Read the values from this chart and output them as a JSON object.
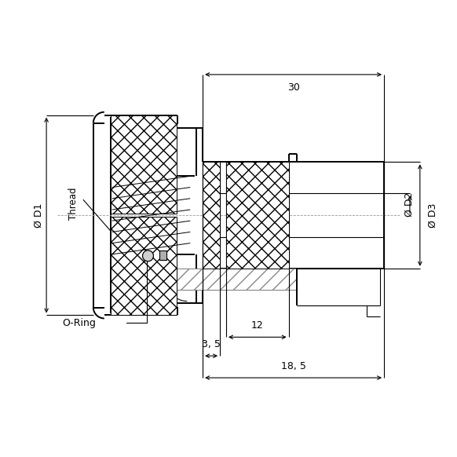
{
  "bg_color": "#ffffff",
  "line_color": "#000000",
  "annotations": {
    "dim_185": "18, 5",
    "dim_35": "3, 5",
    "dim_12": "12",
    "dim_30": "30",
    "label_D1": "Ø D1",
    "label_Thread": "Thread",
    "label_D2": "Ø D2",
    "label_D3": "Ø D3",
    "label_oring": "O-Ring"
  },
  "lw_main": 1.4,
  "lw_thin": 0.8,
  "lw_dim": 0.8
}
